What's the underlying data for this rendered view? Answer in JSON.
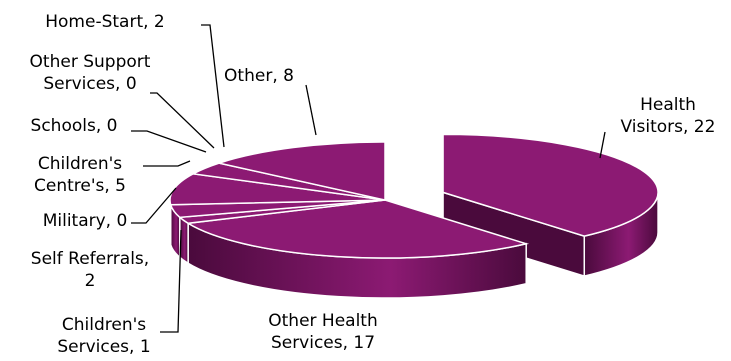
{
  "chart_data": {
    "type": "pie",
    "style": "3d-exploded",
    "title": "",
    "colors": {
      "top": "#8c1a73",
      "side": "#4a0a3c",
      "edge": "#ffffff"
    },
    "slices": [
      {
        "label": "Health Visitors",
        "value": 22,
        "display": [
          "Health",
          "Visitors, 22"
        ]
      },
      {
        "label": "Other Health Services",
        "value": 17,
        "display": [
          "Other Health",
          "Services, 17"
        ]
      },
      {
        "label": "Children's Services",
        "value": 1,
        "display": [
          "Children's",
          "Services, 1"
        ]
      },
      {
        "label": "Self Referrals",
        "value": 2,
        "display": [
          "Self Referrals,",
          "2"
        ]
      },
      {
        "label": "Military",
        "value": 0,
        "display": [
          "Military, 0"
        ]
      },
      {
        "label": "Children's Centre's",
        "value": 5,
        "display": [
          "Children's",
          "Centre's, 5"
        ]
      },
      {
        "label": "Schools",
        "value": 0,
        "display": [
          "Schools, 0"
        ]
      },
      {
        "label": "Other Support Services",
        "value": 0,
        "display": [
          "Other Support",
          "Services, 0"
        ]
      },
      {
        "label": "Home-Start",
        "value": 2,
        "display": [
          "Home-Start, 2"
        ]
      },
      {
        "label": "Other",
        "value": 8,
        "display": [
          "Other, 8"
        ]
      }
    ]
  }
}
